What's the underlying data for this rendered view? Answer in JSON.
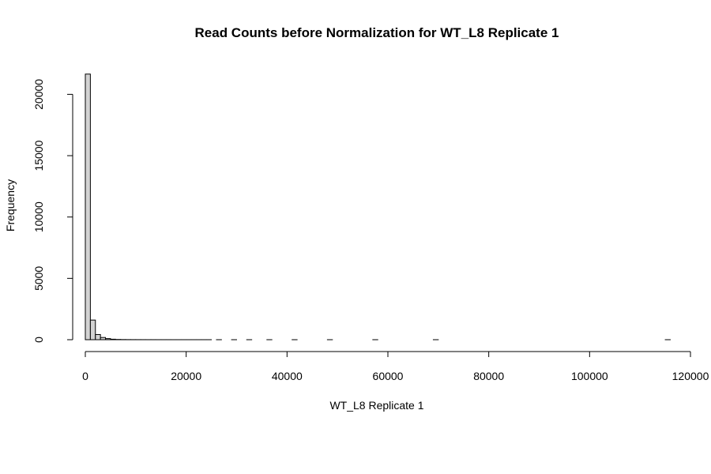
{
  "chart_data": {
    "type": "bar",
    "title": "Read Counts before Normalization for WT_L8 Replicate 1",
    "xlabel": "WT_L8 Replicate 1",
    "ylabel": "Frequency",
    "xlim": [
      0,
      120000
    ],
    "ylim": [
      0,
      21700
    ],
    "x_ticks": [
      0,
      20000,
      40000,
      60000,
      80000,
      100000,
      120000
    ],
    "x_tick_labels": [
      "0",
      "20000",
      "40000",
      "60000",
      "80000",
      "100000",
      "120000"
    ],
    "y_ticks": [
      0,
      5000,
      10000,
      15000,
      20000
    ],
    "y_tick_labels": [
      "0",
      "5000",
      "10000",
      "15000",
      "20000"
    ],
    "bin_width": 1000,
    "bin_start": 0,
    "bins_end": 116000,
    "values": [
      21650,
      1600,
      420,
      180,
      90,
      40,
      20,
      12,
      8,
      6,
      5,
      4,
      3,
      3,
      2,
      2,
      2,
      1,
      1,
      1,
      1,
      1,
      1,
      1,
      1,
      0,
      1,
      0,
      0,
      1,
      0,
      0,
      1,
      0,
      0,
      0,
      1,
      0,
      0,
      0,
      0,
      1,
      0,
      0,
      0,
      0,
      0,
      0,
      1,
      0,
      0,
      0,
      0,
      0,
      0,
      0,
      0,
      1,
      0,
      0,
      0,
      0,
      0,
      0,
      0,
      0,
      0,
      0,
      0,
      1,
      0,
      0,
      0,
      0,
      0,
      0,
      0,
      0,
      0,
      0,
      0,
      0,
      0,
      0,
      0,
      0,
      0,
      0,
      0,
      0,
      0,
      0,
      0,
      0,
      0,
      0,
      0,
      0,
      0,
      0,
      0,
      0,
      0,
      0,
      0,
      0,
      0,
      0,
      0,
      0,
      0,
      0,
      0,
      0,
      0,
      1
    ],
    "grid": false,
    "bar_fill": "#d3d3d3",
    "bar_stroke": "#000000"
  }
}
